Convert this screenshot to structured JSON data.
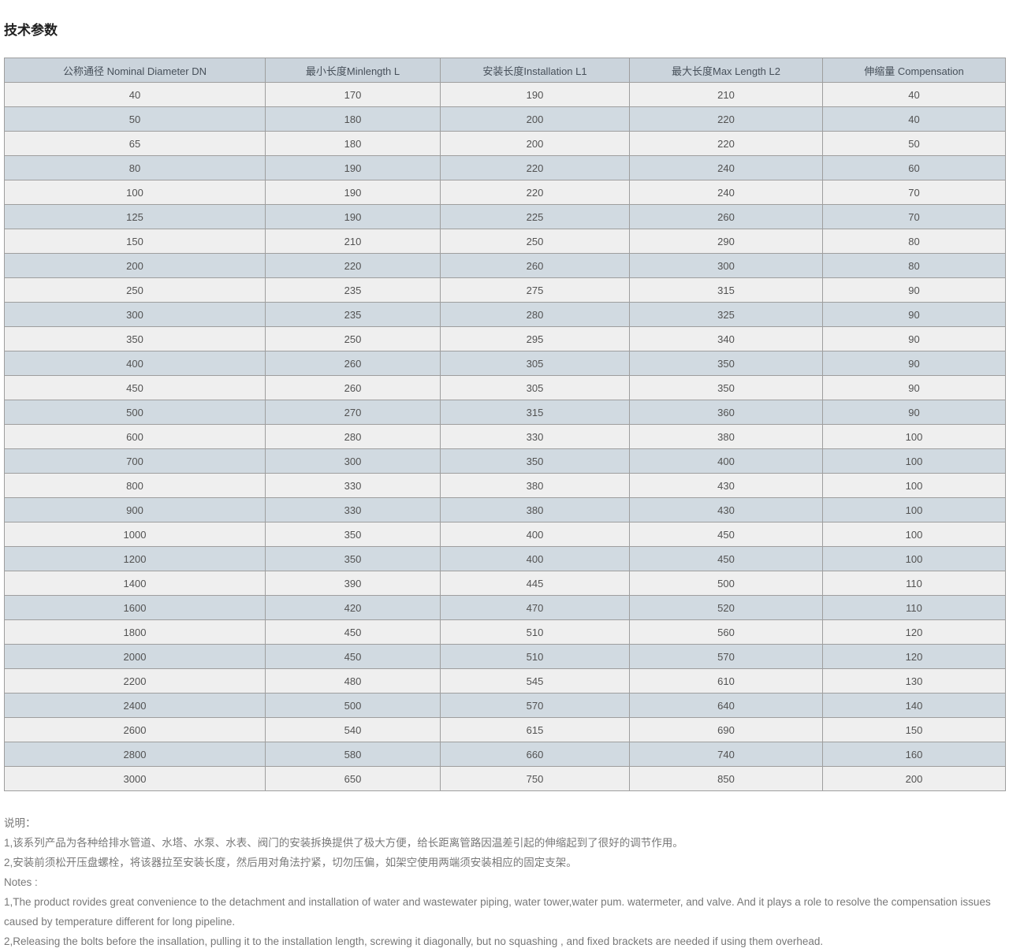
{
  "page": {
    "title": "技术参数"
  },
  "table": {
    "headers": [
      "公称通径 Nominal Diameter DN",
      "最小长度Minlength L",
      "安装长度Installation L1",
      "最大长度Max Length L2",
      "伸缩量 Compensation"
    ],
    "rows": [
      [
        "40",
        "170",
        "190",
        "210",
        "40"
      ],
      [
        "50",
        "180",
        "200",
        "220",
        "40"
      ],
      [
        "65",
        "180",
        "200",
        "220",
        "50"
      ],
      [
        "80",
        "190",
        "220",
        "240",
        "60"
      ],
      [
        "100",
        "190",
        "220",
        "240",
        "70"
      ],
      [
        "125",
        "190",
        "225",
        "260",
        "70"
      ],
      [
        "150",
        "210",
        "250",
        "290",
        "80"
      ],
      [
        "200",
        "220",
        "260",
        "300",
        "80"
      ],
      [
        "250",
        "235",
        "275",
        "315",
        "90"
      ],
      [
        "300",
        "235",
        "280",
        "325",
        "90"
      ],
      [
        "350",
        "250",
        "295",
        "340",
        "90"
      ],
      [
        "400",
        "260",
        "305",
        "350",
        "90"
      ],
      [
        "450",
        "260",
        "305",
        "350",
        "90"
      ],
      [
        "500",
        "270",
        "315",
        "360",
        "90"
      ],
      [
        "600",
        "280",
        "330",
        "380",
        "100"
      ],
      [
        "700",
        "300",
        "350",
        "400",
        "100"
      ],
      [
        "800",
        "330",
        "380",
        "430",
        "100"
      ],
      [
        "900",
        "330",
        "380",
        "430",
        "100"
      ],
      [
        "1000",
        "350",
        "400",
        "450",
        "100"
      ],
      [
        "1200",
        "350",
        "400",
        "450",
        "100"
      ],
      [
        "1400",
        "390",
        "445",
        "500",
        "110"
      ],
      [
        "1600",
        "420",
        "470",
        "520",
        "110"
      ],
      [
        "1800",
        "450",
        "510",
        "560",
        "120"
      ],
      [
        "2000",
        "450",
        "510",
        "570",
        "120"
      ],
      [
        "2200",
        "480",
        "545",
        "610",
        "130"
      ],
      [
        "2400",
        "500",
        "570",
        "640",
        "140"
      ],
      [
        "2600",
        "540",
        "615",
        "690",
        "150"
      ],
      [
        "2800",
        "580",
        "660",
        "740",
        "160"
      ],
      [
        "3000",
        "650",
        "750",
        "850",
        "200"
      ]
    ]
  },
  "notes": {
    "cn_label": "说明：",
    "cn_items": [
      "1,该系列产品为各种给排水管道、水塔、水泵、水表、阀门的安装拆换提供了极大方便，给长距离管路因温差引起的伸缩起到了很好的调节作用。",
      "2,安装前须松开压盘螺栓，将该器拉至安装长度，然后用对角法拧紧，切勿压偏，如架空使用两端须安装相应的固定支架。"
    ],
    "en_label": "Notes :",
    "en_items": [
      "1,The product rovides great convenience to the detachment and installation of water and wastewater piping, water tower,water pum. watermeter, and valve. And it plays a role to resolve the compensation issues caused by temperature different for long pipeline.",
      "2,Releasing the bolts before the insallation, pulling it to the installation length, screwing it diagonally, but no squashing , and fixed brackets are needed if using them overhead."
    ]
  },
  "colors": {
    "header_bg": "#cbd4dc",
    "row_odd_bg": "#efefef",
    "row_even_bg": "#d1dae1",
    "border": "#9e9e9e",
    "text": "#525252",
    "note_text": "#787878",
    "title_text": "#1f1f1f",
    "page_bg": "#ffffff"
  }
}
